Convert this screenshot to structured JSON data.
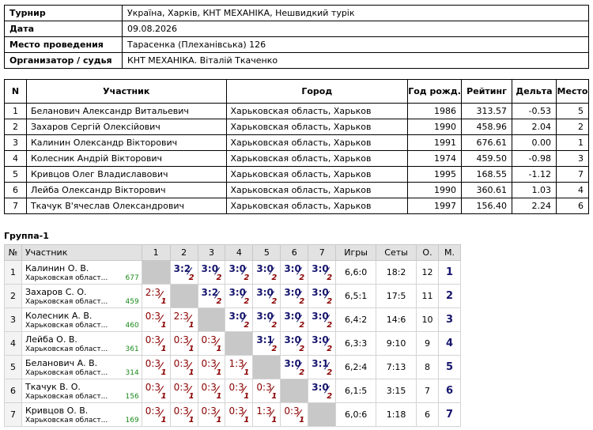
{
  "info": [
    {
      "label": "Турнир",
      "value": "Україна, Харків, КНТ МЕХАНІКА, Нешвидкий турік"
    },
    {
      "label": "Дата",
      "value": "09.08.2026"
    },
    {
      "label": "Место проведения",
      "value": "Тарасенка (Плеханівська) 126"
    },
    {
      "label": "Организатор / судья",
      "value": "КНТ МЕХАНІКА. Віталій Ткаченко"
    }
  ],
  "participants": {
    "headers": [
      "N",
      "Участник",
      "Город",
      "Год рожд.",
      "Рейтинг",
      "Дельта",
      "Место"
    ],
    "rows": [
      [
        "1",
        "Беланович Александр Витальевич",
        "Харьковская область, Харьков",
        "1986",
        "313.57",
        "-0.53",
        "5"
      ],
      [
        "2",
        "Захаров Сергій Олексійович",
        "Харьковская область, Харьков",
        "1990",
        "458.96",
        "2.04",
        "2"
      ],
      [
        "3",
        "Калинин Олександр Вікторович",
        "Харьковская область, Харьков",
        "1991",
        "676.61",
        "0.00",
        "1"
      ],
      [
        "4",
        "Колесник Андрій Вікторович",
        "Харьковская область, Харьков",
        "1974",
        "459.50",
        "-0.98",
        "3"
      ],
      [
        "5",
        "Кривцов Олег Владиславович",
        "Харьковская область, Харьков",
        "1995",
        "168.55",
        "-1.12",
        "7"
      ],
      [
        "6",
        "Лейба Олександр Вікторович",
        "Харьковская область, Харьков",
        "1990",
        "360.61",
        "1.03",
        "4"
      ],
      [
        "7",
        "Ткачук В'ячеслав Олександрович",
        "Харьковская область, Харьков",
        "1997",
        "156.40",
        "2.24",
        "6"
      ]
    ]
  },
  "group": {
    "title": "Группа-1",
    "headers": {
      "num": "№",
      "player": "Участник",
      "cols": [
        "1",
        "2",
        "3",
        "4",
        "5",
        "6",
        "7"
      ],
      "games": "Игры",
      "sets": "Сеты",
      "points": "О.",
      "place": "М."
    },
    "rows": [
      {
        "num": "1",
        "name": "Калинин О. В.",
        "city": "Харьковская област...",
        "rating": "677",
        "results": [
          null,
          {
            "s": "3:2",
            "p": "2",
            "w": true
          },
          {
            "s": "3:0",
            "p": "2",
            "w": true
          },
          {
            "s": "3:0",
            "p": "2",
            "w": true
          },
          {
            "s": "3:0",
            "p": "2",
            "w": true
          },
          {
            "s": "3:0",
            "p": "2",
            "w": true
          },
          {
            "s": "3:0",
            "p": "2",
            "w": true
          }
        ],
        "games": "6,6:0",
        "sets": "18:2",
        "points": "12",
        "place": "1"
      },
      {
        "num": "2",
        "name": "Захаров С. О.",
        "city": "Харьковская област...",
        "rating": "459",
        "results": [
          {
            "s": "2:3",
            "p": "1",
            "w": false
          },
          null,
          {
            "s": "3:2",
            "p": "2",
            "w": true
          },
          {
            "s": "3:0",
            "p": "2",
            "w": true
          },
          {
            "s": "3:0",
            "p": "2",
            "w": true
          },
          {
            "s": "3:0",
            "p": "2",
            "w": true
          },
          {
            "s": "3:0",
            "p": "2",
            "w": true
          }
        ],
        "games": "6,5:1",
        "sets": "17:5",
        "points": "11",
        "place": "2"
      },
      {
        "num": "3",
        "name": "Колесник А. В.",
        "city": "Харьковская област...",
        "rating": "460",
        "results": [
          {
            "s": "0:3",
            "p": "1",
            "w": false
          },
          {
            "s": "2:3",
            "p": "1",
            "w": false
          },
          null,
          {
            "s": "3:0",
            "p": "2",
            "w": true
          },
          {
            "s": "3:0",
            "p": "2",
            "w": true
          },
          {
            "s": "3:0",
            "p": "2",
            "w": true
          },
          {
            "s": "3:0",
            "p": "2",
            "w": true
          }
        ],
        "games": "6,4:2",
        "sets": "14:6",
        "points": "10",
        "place": "3"
      },
      {
        "num": "4",
        "name": "Лейба О. В.",
        "city": "Харьковская област...",
        "rating": "361",
        "results": [
          {
            "s": "0:3",
            "p": "1",
            "w": false
          },
          {
            "s": "0:3",
            "p": "1",
            "w": false
          },
          {
            "s": "0:3",
            "p": "1",
            "w": false
          },
          null,
          {
            "s": "3:1",
            "p": "2",
            "w": true
          },
          {
            "s": "3:0",
            "p": "2",
            "w": true
          },
          {
            "s": "3:0",
            "p": "2",
            "w": true
          }
        ],
        "games": "6,3:3",
        "sets": "9:10",
        "points": "9",
        "place": "4"
      },
      {
        "num": "5",
        "name": "Беланович А. В.",
        "city": "Харьковская област...",
        "rating": "314",
        "results": [
          {
            "s": "0:3",
            "p": "1",
            "w": false
          },
          {
            "s": "0:3",
            "p": "1",
            "w": false
          },
          {
            "s": "0:3",
            "p": "1",
            "w": false
          },
          {
            "s": "1:3",
            "p": "1",
            "w": false
          },
          null,
          {
            "s": "3:0",
            "p": "2",
            "w": true
          },
          {
            "s": "3:1",
            "p": "2",
            "w": true
          }
        ],
        "games": "6,2:4",
        "sets": "7:13",
        "points": "8",
        "place": "5"
      },
      {
        "num": "6",
        "name": "Ткачук В. О.",
        "city": "Харьковская област...",
        "rating": "156",
        "results": [
          {
            "s": "0:3",
            "p": "1",
            "w": false
          },
          {
            "s": "0:3",
            "p": "1",
            "w": false
          },
          {
            "s": "0:3",
            "p": "1",
            "w": false
          },
          {
            "s": "0:3",
            "p": "1",
            "w": false
          },
          {
            "s": "0:3",
            "p": "1",
            "w": false
          },
          null,
          {
            "s": "3:0",
            "p": "2",
            "w": true
          }
        ],
        "games": "6,1:5",
        "sets": "3:15",
        "points": "7",
        "place": "6"
      },
      {
        "num": "7",
        "name": "Кривцов О. В.",
        "city": "Харьковская област...",
        "rating": "169",
        "results": [
          {
            "s": "0:3",
            "p": "1",
            "w": false
          },
          {
            "s": "0:3",
            "p": "1",
            "w": false
          },
          {
            "s": "0:3",
            "p": "1",
            "w": false
          },
          {
            "s": "0:3",
            "p": "1",
            "w": false
          },
          {
            "s": "1:3",
            "p": "1",
            "w": false
          },
          {
            "s": "0:3",
            "p": "1",
            "w": false
          },
          null
        ],
        "games": "6,0:6",
        "sets": "1:18",
        "points": "6",
        "place": "7"
      }
    ]
  }
}
